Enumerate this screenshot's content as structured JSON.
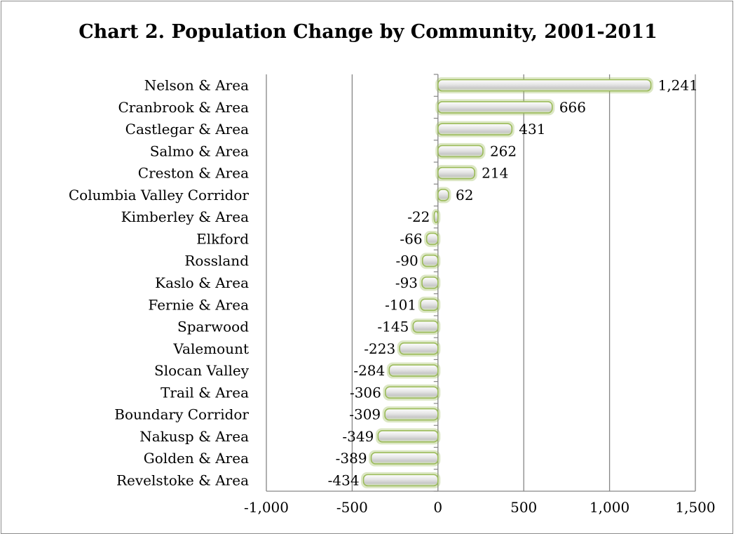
{
  "chart_data": {
    "type": "bar",
    "orientation": "horizontal",
    "title": "Chart 2. Population Change by Community, 2001-2011",
    "categories": [
      "Nelson & Area",
      "Cranbrook & Area",
      "Castlegar & Area",
      "Salmo & Area",
      "Creston & Area",
      "Columbia Valley Corridor",
      "Kimberley & Area",
      "Elkford",
      "Rossland",
      "Kaslo & Area",
      "Fernie & Area",
      "Sparwood",
      "Valemount",
      "Slocan Valley",
      "Trail & Area",
      "Boundary Corridor",
      "Nakusp & Area",
      "Golden & Area",
      "Revelstoke & Area"
    ],
    "values": [
      1241,
      666,
      431,
      262,
      214,
      62,
      -22,
      -66,
      -90,
      -93,
      -101,
      -145,
      -223,
      -284,
      -306,
      -309,
      -349,
      -389,
      -434
    ],
    "value_labels": [
      "1,241",
      "666",
      "431",
      "262",
      "214",
      "62",
      "-22",
      "-66",
      "-90",
      "-93",
      "-101",
      "-145",
      "-223",
      "-284",
      "-306",
      "-309",
      "-349",
      "-389",
      "-434"
    ],
    "xlim": [
      -1000,
      1500
    ],
    "x_ticks": [
      -1000,
      -500,
      0,
      500,
      1000,
      1500
    ],
    "x_tick_labels": [
      "-1,000",
      "-500",
      "0",
      "500",
      "1,000",
      "1,500"
    ],
    "grid": "vertical",
    "legend": "none",
    "colors": {
      "bar_outline": "#9bbb59",
      "bar_fill": "#f2f2f2",
      "grid": "#868686"
    }
  }
}
